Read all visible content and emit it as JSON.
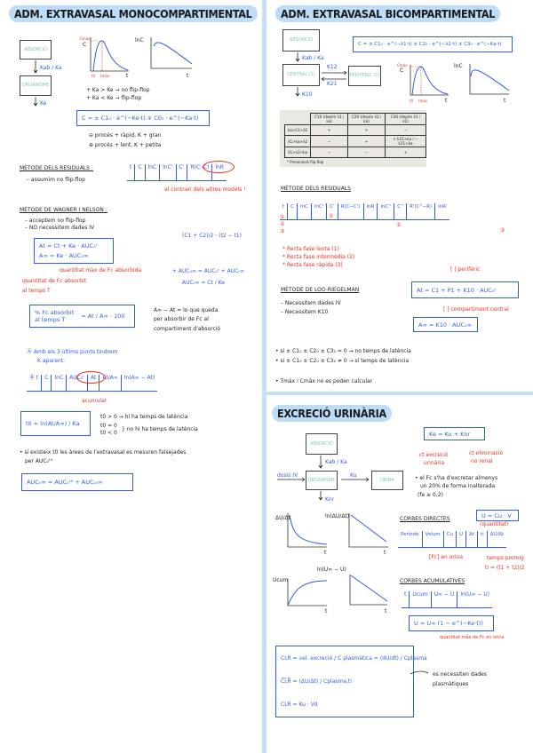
{
  "left": {
    "title": "ADM. EXTRAVASAL MONOCOMPARTIMENTAL",
    "diagram": {
      "box1": "ABSORCIÓ",
      "k1": "Kab / Ka",
      "box2": "ORGANISME",
      "k2": "Ke"
    },
    "graph1": {
      "ylabel": "C",
      "cmax": "Cmàx",
      "t0": "t0",
      "tmax": "tmàx",
      "xlabel": "t"
    },
    "graph2": {
      "ylabel": "lnC",
      "xlabel": "t"
    },
    "flip": [
      "+ Ka > Ke → no flip-flop",
      "+ Ka < Ke → flip-flop"
    ],
    "formula": "C = ± C1₀ · e^(−Ke·t) ∓ C0₀ · e^(−Ka·t)",
    "notes": [
      "⊖ procés + ràpid, K + gran",
      "⊕ procés + lent, K + petita"
    ],
    "residuals": {
      "heading": "MÈTODE DELS RESIDUALS :",
      "note": "– assumim no flip-flop",
      "cols": [
        "t",
        "C",
        "lnC",
        "lnC'",
        "C'",
        "R(C'-C)",
        "lnR"
      ],
      "red": "al contrari dels altres models !"
    },
    "wagner": {
      "heading": "MÈTODE DE WAGNER I NELSON :",
      "notes": [
        "– acceptem no flip-flop",
        "– NO necessitem dades IV"
      ],
      "trap": "(C1 + C2)/2 · (t2 − t1)",
      "eq1": "At = Ct + Ke · AUC₀ᵗ",
      "eq2": "A∞ = Ke · AUC₀∞",
      "red1": "quantitat màx de Fc absorbida",
      "red2a": "quantitat de Fc absorbit",
      "red2b": "al temps T",
      "auc1": "+ AUC₀∞ = AUC₀ᵗ + AUCₜ∞",
      "auc2": "AUCₜ∞ = Ct / Ke",
      "pct_a": "% Fc absorbit",
      "pct_b": "al temps T",
      "pct_eq": "= At / A∞ · 100",
      "rem": [
        "A∞ − At = lo que queda",
        "per absorbir de Fc al",
        "compartiment d'absorció"
      ],
      "a1": "Ⓐ Amb els 3 últims punts tindrem",
      "a2": "K aparent.",
      "bcols": [
        "Ⓑ t",
        "C",
        "lnC",
        "AUC₀ᵗ",
        "At",
        "At/A∞",
        "ln(A∞ − At)"
      ],
      "acum": "acumular",
      "t0eq": "t0 = ln(At/A∞) / Ka",
      "t0notes": [
        "t0 > 0 → hi ha temps de latència",
        "t0 = 0",
        "t0 < 0",
        "} no hi ha temps de latència"
      ],
      "bullet1": "• si existeix t0 les àrees de l'extravasal es mesuren falsejades",
      "bullet2": "per AUC₀ᵗ⁰",
      "final": "AUC₀∞ = AUC₀ᵗ⁰ + AUCₜ₀∞"
    }
  },
  "right": {
    "title": "ADM. EXTRAVASAL BICOMPARTIMENTAL",
    "diagram": {
      "box1": "ABSORCIÓ",
      "k1": "Kab / Ka",
      "central": "CENTRAL (1)",
      "peri": "PERIFÈRIC (2)",
      "k12": "K12",
      "k21": "K21",
      "k10": "K10"
    },
    "formula": "C = ± C1₀ · e^(−λ1·t) ± C2₀ · e^(−λ2·t) ± C3₀ · e^(−Ka·t)",
    "graph1": {
      "ylabel": "C",
      "cmax": "Cmàx",
      "t0": "t0",
      "tmax": "tmàx",
      "xlabel": "t"
    },
    "graph2": {
      "ylabel": "lnC",
      "xlabel": "t"
    },
    "table": {
      "headers": [
        "",
        "C10 (depèn λ1 i ka)",
        "C20 (depèn λ2 i ka)",
        "C30 (depèn λ1 i λ2)"
      ],
      "rows": [
        [
          "ka>λ1>λ2",
          "+",
          "+",
          "−"
        ],
        [
          "λ1>ka>λ2",
          "−",
          "+",
          "+ k21>ka / − k21<ka"
        ],
        [
          "λ1>λ2>ka",
          "−",
          "−",
          "+"
        ]
      ],
      "footnote": "* Presentarà flip-flop"
    },
    "residuals": {
      "heading": "MÈTODE DELS RESIDUALS",
      "cols": [
        "t",
        "C",
        "lnC",
        "lnC'",
        "C'",
        "R(C−C')",
        "lnR",
        "lnC''",
        "C''",
        "R'(C''−R)",
        "lnR'"
      ],
      "steps": [
        "* Recta fase lenta (1)",
        "* Recta fase intermèdia (2)",
        "* Recta fase ràpida (3)"
      ]
    },
    "loo": {
      "heading": "MÈTODE DE LOO-RIEGELMAN",
      "notes": [
        "– Necessitem dades IV",
        "– Necessitem K10"
      ],
      "eq1": "At = C1 + P1 + K10 · AUC₀ᵗ",
      "peri": "[ ] perifèric",
      "central": "[ ] compartiment central",
      "eq2": "A∞ = K10 · AUC₀∞"
    },
    "bullets": [
      "• si ± C1₀ ± C2₀ ± C3₀ = 0 → no temps de latència",
      "• si ± C1₀ ± C2₀ ± C3₀ ≠ 0 → sí temps de latència",
      "• Tmàx i Cmàx no es poden calcular"
    ]
  },
  "urine": {
    "title": "EXCRECIÓ URINÀRIA",
    "diagram": {
      "box1": "ABSORCIÓ",
      "k1": "Kab / Ka",
      "iv": "dosis IV",
      "org": "ORGANISME",
      "ku": "Ku",
      "orina": "ORINA",
      "knr": "Knr"
    },
    "ke": "Ke = Ku + Knr",
    "red1": [
      "ct excreció",
      "urinària"
    ],
    "red2": [
      "ct eliminació",
      "no renal"
    ],
    "cond": [
      "• el Fc s'ha d'excretar almenys",
      "un 20% de forma inalterada",
      "(fe ≥ 0,2)"
    ],
    "g1": "ΔU/Δt",
    "g1x": "t",
    "g2": "ln(ΔU/Δt)",
    "g2x": "t",
    "g3": "Ucum",
    "g3x": "t",
    "g4": "ln(U∞ − U)",
    "g4x": "t",
    "direct": {
      "heading": "CORBES DIRECTES",
      "cols": [
        "Període",
        "Volum",
        "Cu",
        "U",
        "Δt",
        "ti",
        "ΔU/Δt"
      ],
      "ueq": "U = Cu · V",
      "qty": "(quantitat)",
      "conc": "[Fc] en orina",
      "tp": "temps promig",
      "ti": "ti = (t1 + t2)/2"
    },
    "cum": {
      "heading": "CORBES ACUMULATIVES",
      "cols": [
        "t",
        "Ucum",
        "U∞ − U",
        "ln(U∞ − U)"
      ],
      "eq": "U = U∞ (1 − e^(−Ke·t))",
      "red": "quantitat màx de Fc en orina"
    },
    "cl": [
      "CLR = vel. excreció / C plasmàtica = (dU/dt) / Cplasma",
      "C̅L̅R̅ = (ΔU/Δt) / Cplasma,ti",
      "CLR = Ku · Vd"
    ],
    "note": [
      "es necessiten dades",
      "plasmàtiques"
    ]
  }
}
